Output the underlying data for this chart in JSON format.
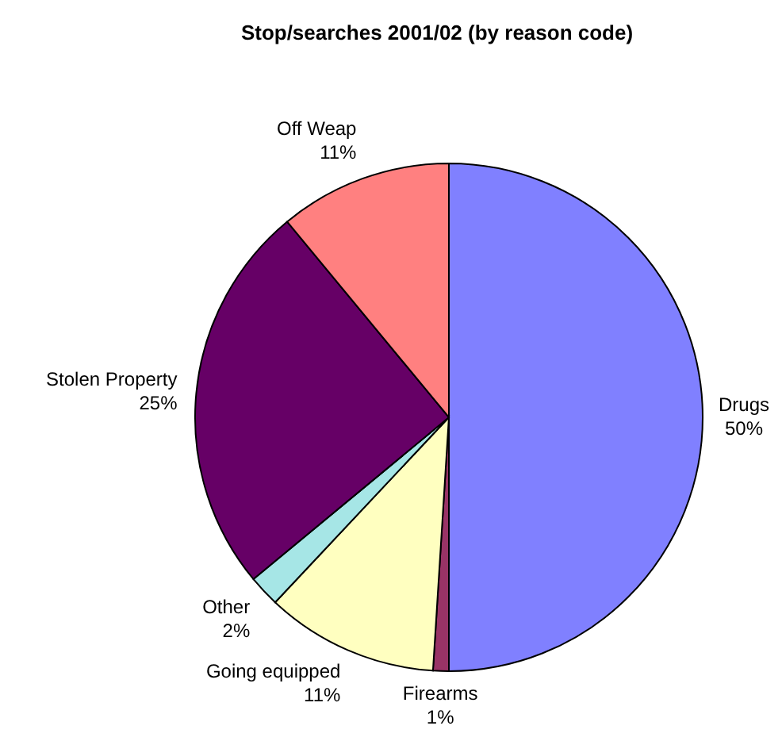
{
  "chart_data": {
    "type": "pie",
    "title": "Stop/searches 2001/02 (by reason code)",
    "categories": [
      "Drugs",
      "Firearms",
      "Going equipped",
      "Other",
      "Stolen Property",
      "Off Weap"
    ],
    "values": [
      50,
      1,
      11,
      2,
      25,
      11
    ],
    "value_labels": [
      "50%",
      "1%",
      "11%",
      "2%",
      "25%",
      "11%"
    ],
    "colors": [
      "#8080ff",
      "#993366",
      "#ffffc0",
      "#a6e6e6",
      "#660066",
      "#ff8080"
    ]
  }
}
